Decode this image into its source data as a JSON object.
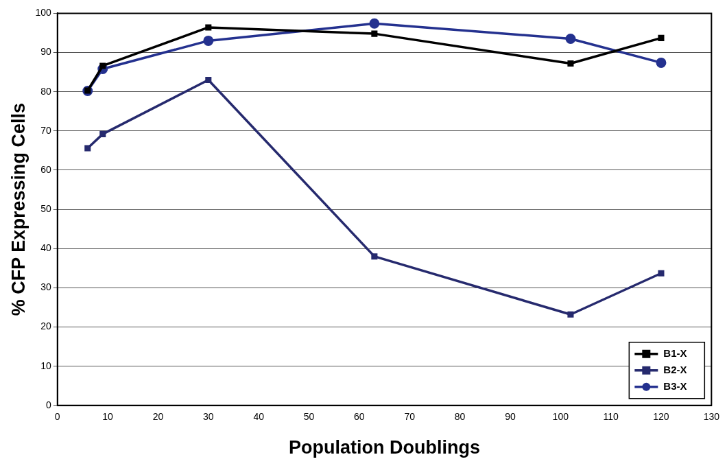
{
  "chart_data": {
    "type": "line",
    "xlabel": "Population Doublings",
    "ylabel": "% CFP Expressing Cells",
    "xlim": [
      0,
      130
    ],
    "xticks": [
      0,
      10,
      20,
      30,
      40,
      50,
      60,
      70,
      80,
      90,
      100,
      110,
      120,
      130
    ],
    "ylim": [
      0,
      100
    ],
    "yticks": [
      0,
      10,
      20,
      30,
      40,
      50,
      60,
      70,
      80,
      90,
      100
    ],
    "grid": "y",
    "legend": "bottom right",
    "line_style": "solid",
    "x": [
      6,
      9,
      30,
      63,
      102,
      120
    ],
    "series": [
      {
        "name": "B1-X",
        "color": "#000000",
        "marker": "square",
        "values": [
          80.3,
          86.6,
          96.4,
          94.8,
          87.2,
          93.7
        ]
      },
      {
        "name": "B2-X",
        "color": "#262a6e",
        "marker": "square",
        "values": [
          65.6,
          69.2,
          83.0,
          38.0,
          23.2,
          33.7
        ]
      },
      {
        "name": "B3-X",
        "color": "#24318f",
        "marker": "circle",
        "values": [
          80.2,
          85.8,
          93.0,
          97.4,
          93.5,
          87.4
        ]
      }
    ]
  }
}
